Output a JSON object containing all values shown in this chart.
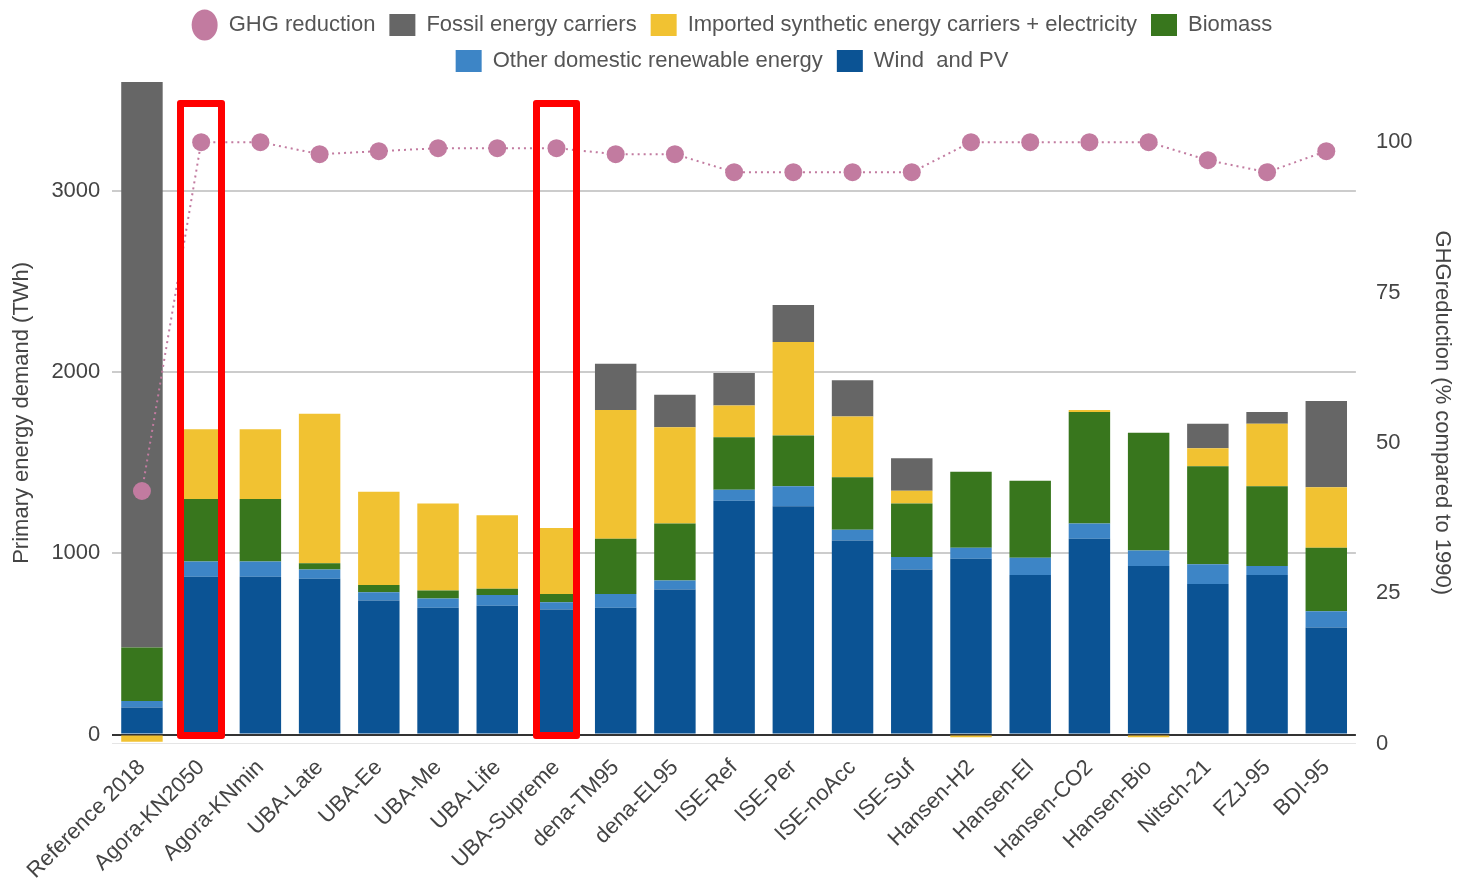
{
  "chart_data": {
    "type": "bar",
    "stacked": true,
    "categories": [
      "Reference 2018",
      "Agora-KN2050",
      "Agora-KNmin",
      "UBA-Late",
      "UBA-Ee",
      "UBA-Me",
      "UBA-Life",
      "UBA-Supreme",
      "dena-TM95",
      "dena-EL95",
      "ISE-Ref",
      "ISE-Per",
      "ISE-noAcc",
      "ISE-Suf",
      "Hansen-H2",
      "Hansen-El",
      "Hansen-CO2",
      "Hansen-Bio",
      "Nitsch-21",
      "FZJ-95",
      "BDI-95"
    ],
    "series": [
      {
        "name": "Wind  and PV",
        "color": "#0b5394",
        "values": [
          150,
          870,
          870,
          860,
          740,
          700,
          710,
          690,
          700,
          800,
          1290,
          1260,
          1070,
          910,
          970,
          880,
          1080,
          930,
          830,
          880,
          590
        ]
      },
      {
        "name": "Other domestic renewable energy",
        "color": "#3d85c6",
        "values": [
          35,
          85,
          85,
          50,
          45,
          50,
          60,
          40,
          75,
          50,
          60,
          110,
          60,
          70,
          60,
          95,
          85,
          85,
          110,
          50,
          90
        ]
      },
      {
        "name": "Biomass",
        "color": "#38761d",
        "values": [
          295,
          345,
          345,
          35,
          40,
          45,
          35,
          45,
          305,
          315,
          290,
          280,
          290,
          295,
          420,
          425,
          615,
          650,
          540,
          440,
          350
        ]
      },
      {
        "name": "Imported synthetic energy carriers + electricity",
        "color": "#f1c232",
        "values": [
          -40,
          385,
          385,
          825,
          515,
          480,
          405,
          365,
          710,
          530,
          175,
          515,
          335,
          70,
          -15,
          0,
          10,
          -15,
          100,
          345,
          335
        ]
      },
      {
        "name": "Fossil energy carriers",
        "color": "#666666",
        "values": [
          3120,
          0,
          0,
          0,
          0,
          0,
          0,
          0,
          255,
          180,
          180,
          205,
          200,
          180,
          0,
          0,
          0,
          0,
          135,
          65,
          475
        ]
      },
      {
        "name": "GHG reduction",
        "type": "line",
        "axis": "y2",
        "color": "#c27ba0",
        "line_style": "dotted",
        "values": [
          42,
          100,
          100,
          98,
          98.5,
          99,
          99,
          99,
          98,
          98,
          95,
          95,
          95,
          95,
          100,
          100,
          100,
          100,
          97,
          95,
          98.5
        ]
      }
    ],
    "ylabel": "Primary energy demand (TWh)",
    "y2label": "GHGreduction (% compared to 1990)",
    "ylim": [
      -50,
      3600
    ],
    "yticks": [
      0,
      1000,
      2000,
      3000
    ],
    "y2lim": [
      0,
      110
    ],
    "y2ticks": [
      0,
      25,
      50,
      75,
      100
    ],
    "grid": "y",
    "legend": "top",
    "marker": "circle"
  }
}
